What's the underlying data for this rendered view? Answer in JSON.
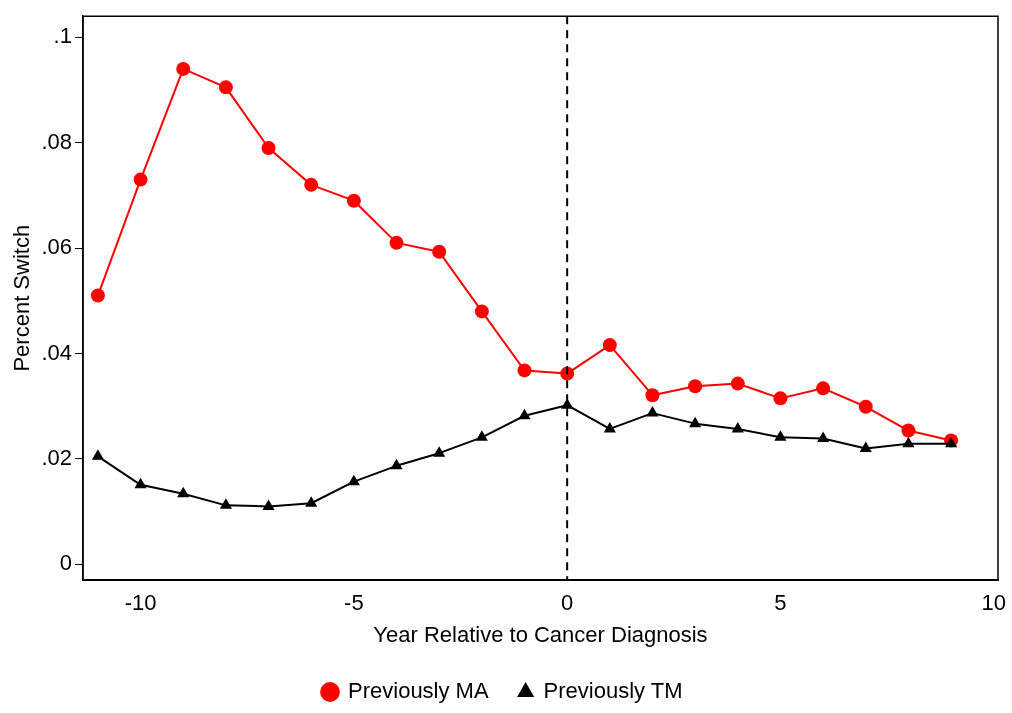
{
  "chart_data": {
    "type": "line",
    "xlabel": "Year Relative to Cancer Diagnosis",
    "ylabel": "Percent Switch",
    "x": [
      -11,
      -10,
      -9,
      -8,
      -7,
      -6,
      -5,
      -4,
      -3,
      -2,
      -1,
      0,
      1,
      2,
      3,
      4,
      5,
      6,
      7,
      8,
      9
    ],
    "series": [
      {
        "name": "Previously MA",
        "color": "#ff0000",
        "marker": "circle",
        "values": [
          0.051,
          0.073,
          0.094,
          0.0905,
          0.079,
          0.072,
          0.069,
          0.061,
          0.0593,
          0.048,
          0.0368,
          0.0362,
          0.0416,
          0.0321,
          0.0338,
          0.0343,
          0.0315,
          0.0334,
          0.0299,
          0.0254,
          0.0235
        ]
      },
      {
        "name": "Previously TM",
        "color": "#000000",
        "marker": "triangle",
        "values": [
          0.0205,
          0.0151,
          0.0134,
          0.0112,
          0.011,
          0.0116,
          0.0157,
          0.0187,
          0.0211,
          0.0241,
          0.0282,
          0.0302,
          0.0257,
          0.0287,
          0.0267,
          0.0257,
          0.0241,
          0.0239,
          0.022,
          0.0229,
          0.0229
        ]
      }
    ],
    "xlim": [
      -11.35,
      10.1
    ],
    "xticks": [
      -10,
      -5,
      0,
      5,
      10
    ],
    "ylim": [
      -0.003,
      0.104
    ],
    "yticks": [
      {
        "value": 0,
        "label": "0"
      },
      {
        "value": 0.02,
        "label": ".02"
      },
      {
        "value": 0.04,
        "label": ".04"
      },
      {
        "value": 0.06,
        "label": ".06"
      },
      {
        "value": 0.08,
        "label": ".08"
      },
      {
        "value": 0.1,
        "label": ".1"
      }
    ],
    "ref_lines": [
      {
        "axis": "x",
        "value": 0,
        "color": "#000000",
        "line_style": "dashed"
      }
    ],
    "grid": false,
    "legend": "bottom",
    "line_style": "solid"
  }
}
